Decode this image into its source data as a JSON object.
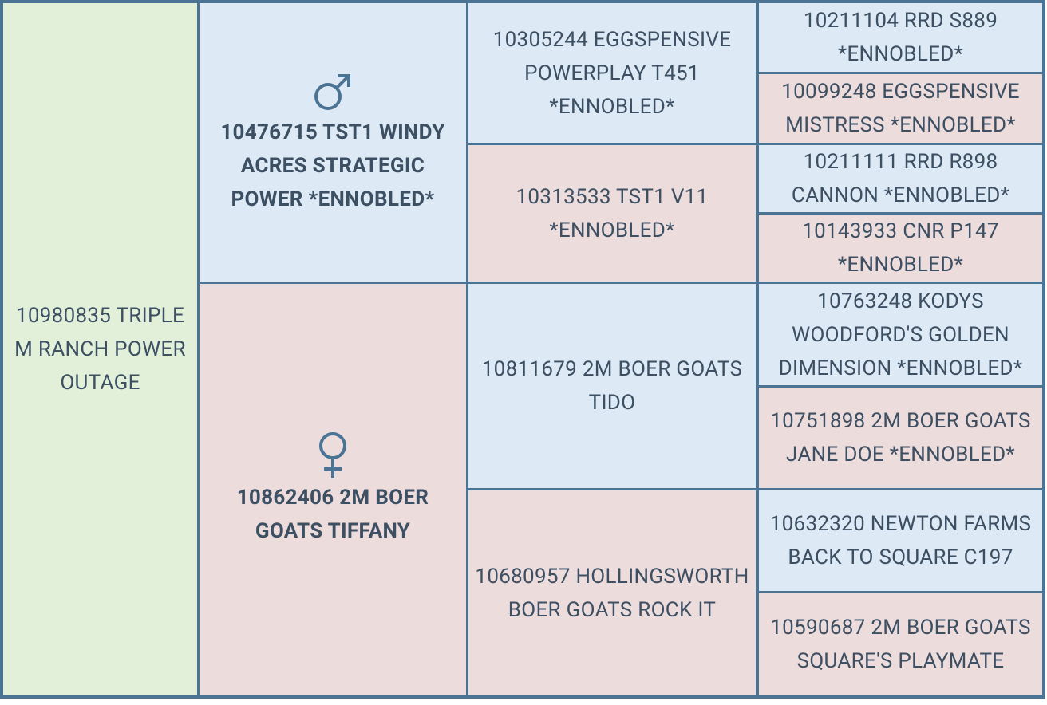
{
  "pedigree": {
    "subject": "10980835 TRIPLE M RANCH POWER OUTAGE",
    "parents": [
      "10476715 TST1 WINDY ACRES STRATEGIC POWER *ENNOBLED*",
      "10862406 2M BOER GOATS TIFFANY"
    ],
    "grandparents": [
      "10305244 EGGSPENSIVE POWERPLAY T451 *ENNOBLED*",
      "10313533 TST1 V11 *ENNOBLED*",
      "10811679 2M BOER GOATS TIDO",
      "10680957 HOLLINGSWORTH BOER GOATS ROCK IT"
    ],
    "great_grandparents": [
      "10211104 RRD S889 *ENNOBLED*",
      "10099248 EGGSPENSIVE MISTRESS *ENNOBLED*",
      "10211111 RRD R898 CANNON *ENNOBLED*",
      "10143933 CNR P147 *ENNOBLED*",
      "10763248 KODYS WOODFORD'S GOLDEN DIMENSION *ENNOBLED*",
      "10751898 2M BOER GOATS JANE DOE *ENNOBLED*",
      "10632320 NEWTON FARMS BACK TO SQUARE C197",
      "10590687 2M BOER GOATS SQUARE'S PLAYMATE"
    ]
  }
}
